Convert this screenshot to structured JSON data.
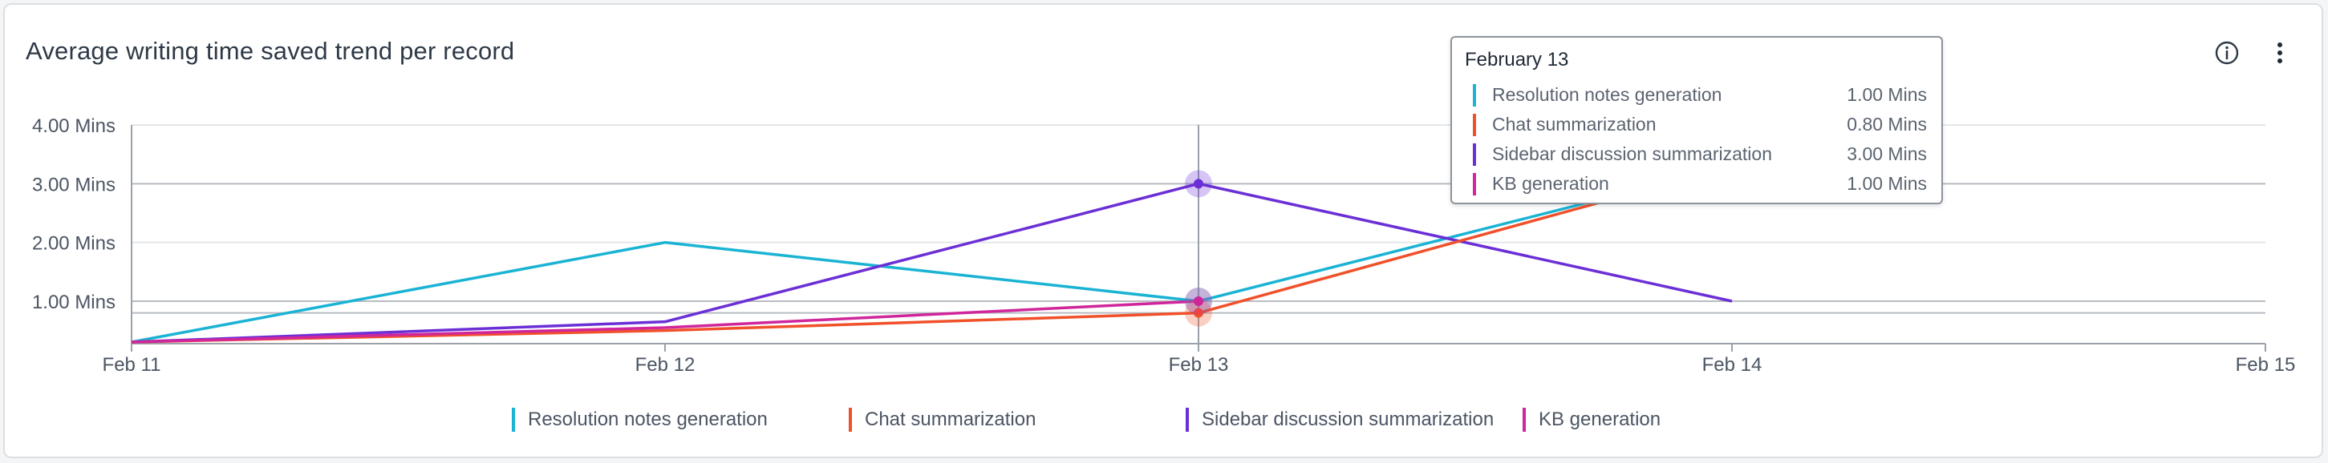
{
  "card": {
    "title": "Average writing time saved trend per record",
    "info_icon": "info-circle-icon",
    "more_icon": "more-vertical-icon"
  },
  "chart_data": {
    "type": "line",
    "title": "Average writing time saved trend per record",
    "xlabel": "",
    "ylabel": "",
    "x": [
      "Feb 11",
      "Feb 12",
      "Feb 13",
      "Feb 14",
      "Feb 15"
    ],
    "y_ticks": [
      "1.00 Mins",
      "2.00 Mins",
      "3.00 Mins",
      "4.00 Mins"
    ],
    "ylim": [
      0.3,
      4.0
    ],
    "grid": true,
    "legend_position": "bottom",
    "series": [
      {
        "name": "Resolution notes generation",
        "color": "#1ab3d4",
        "values": [
          0.3,
          2.0,
          1.0,
          3.3,
          null
        ]
      },
      {
        "name": "Chat summarization",
        "color": "#f0502a",
        "values": [
          0.3,
          0.5,
          0.8,
          3.3,
          null
        ]
      },
      {
        "name": "Sidebar discussion summarization",
        "color": "#6b2fd6",
        "values": [
          0.3,
          0.65,
          3.0,
          1.0,
          null
        ]
      },
      {
        "name": "KB generation",
        "color": "#d0269b",
        "values": [
          0.3,
          0.55,
          1.0,
          null,
          null
        ]
      }
    ],
    "highlight_index": 2
  },
  "tooltip": {
    "title": "February 13",
    "rows": [
      {
        "name": "Resolution notes generation",
        "value": "1.00 Mins",
        "color": "#1ab3d4"
      },
      {
        "name": "Chat summarization",
        "value": "0.80 Mins",
        "color": "#f0502a"
      },
      {
        "name": "Sidebar discussion summarization",
        "value": "3.00 Mins",
        "color": "#6b2fd6"
      },
      {
        "name": "KB generation",
        "value": "1.00 Mins",
        "color": "#d0269b"
      }
    ]
  },
  "legend": [
    {
      "label": "Resolution notes generation",
      "color": "#1ab3d4"
    },
    {
      "label": "Chat summarization",
      "color": "#f0502a"
    },
    {
      "label": "Sidebar discussion summarization",
      "color": "#6b2fd6"
    },
    {
      "label": "KB generation",
      "color": "#d0269b"
    }
  ]
}
